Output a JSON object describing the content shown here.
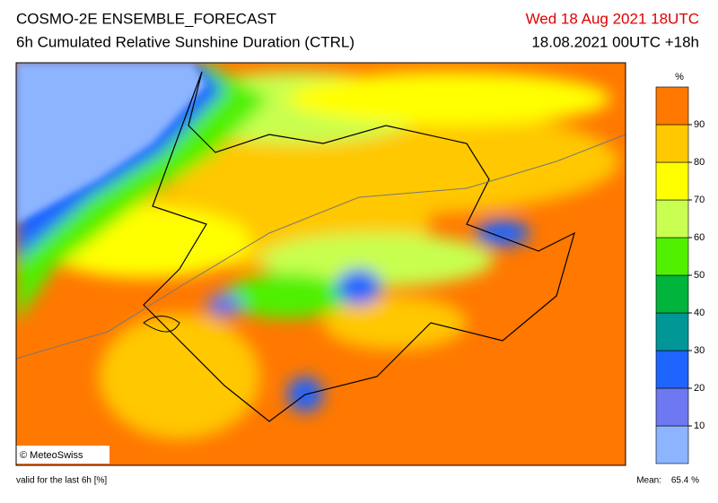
{
  "header": {
    "title": "COSMO-2E ENSEMBLE_FORECAST",
    "subtitle": "6h Cumulated Relative Sunshine Duration (CTRL)",
    "valid_time": "Wed 18 Aug 2021 18UTC",
    "run": "18.08.2021 00UTC +18h"
  },
  "map": {
    "credit": "© MeteoSwiss"
  },
  "colorbar": {
    "unit": "%",
    "ticks": [
      10,
      20,
      30,
      40,
      50,
      60,
      70,
      80,
      90
    ],
    "lim": [
      0,
      100
    ],
    "colors": [
      "#8cb4ff",
      "#6e78f0",
      "#1e64ff",
      "#009696",
      "#00b43c",
      "#50f000",
      "#c8ff50",
      "#ffff00",
      "#ffc800",
      "#ff7800"
    ]
  },
  "footer": {
    "note": "valid for the last 6h [%]",
    "mean_label": "Mean:",
    "mean_value": "65.4 %"
  }
}
